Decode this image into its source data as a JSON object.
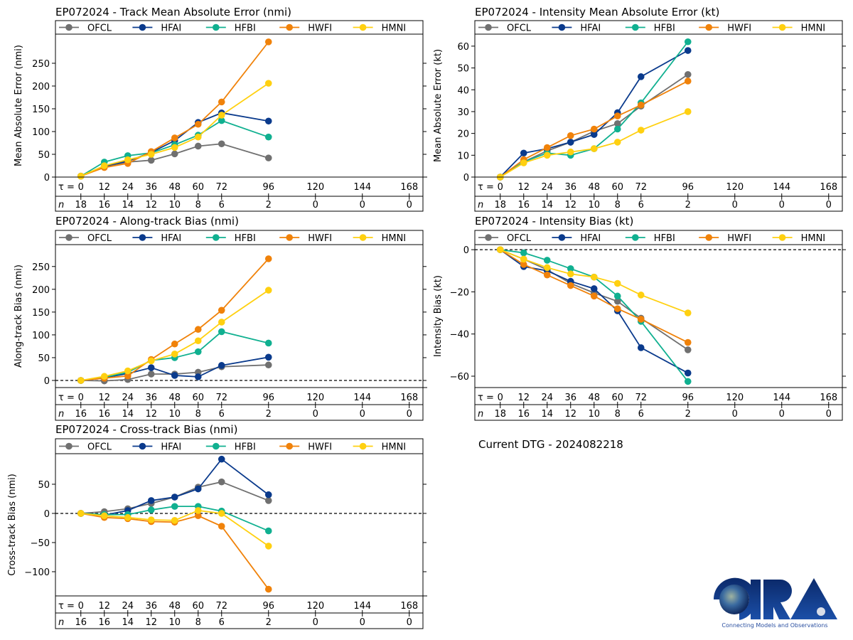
{
  "footer": {
    "dtg_label": "Current DTG - 2024082218",
    "logo_text": "CIRA",
    "logo_tagline": "Connecting Models and Observations"
  },
  "series_styles": [
    {
      "name": "OFCL",
      "color": "#707070"
    },
    {
      "name": "HFAI",
      "color": "#0a3a8c"
    },
    {
      "name": "HFBI",
      "color": "#10b090"
    },
    {
      "name": "HWFI",
      "color": "#f0820a"
    },
    {
      "name": "HMNI",
      "color": "#ffd010"
    }
  ],
  "chart_data": [
    {
      "id": "track-mae",
      "type": "line",
      "title": "EP072024 - Track Mean Absolute Error (nmi)",
      "ylabel": "Mean Absolute Error (nmi)",
      "xlabel": "τ",
      "x_ticks": [
        0,
        12,
        24,
        36,
        48,
        60,
        72,
        96,
        120,
        144,
        168
      ],
      "n_counts": [
        18,
        16,
        14,
        12,
        10,
        8,
        6,
        2,
        0,
        0,
        0
      ],
      "y_ticks": [
        0,
        50,
        100,
        150,
        200,
        250
      ],
      "ylim": [
        0,
        314
      ],
      "xlim": [
        -13,
        175
      ],
      "zero_line": false,
      "legend": "top",
      "x": [
        0,
        12,
        24,
        36,
        48,
        60,
        72,
        96
      ],
      "series": [
        {
          "name": "OFCL",
          "values": [
            2,
            23,
            33,
            37,
            51,
            68,
            73,
            42
          ]
        },
        {
          "name": "HFAI",
          "values": [
            2,
            24,
            35,
            54,
            80,
            120,
            141,
            123
          ]
        },
        {
          "name": "HFBI",
          "values": [
            2,
            33,
            47,
            53,
            71,
            92,
            124,
            88
          ]
        },
        {
          "name": "HWFI",
          "values": [
            2,
            21,
            30,
            56,
            86,
            116,
            165,
            297
          ]
        },
        {
          "name": "HMNI",
          "values": [
            2,
            25,
            38,
            50,
            65,
            88,
            136,
            206
          ]
        }
      ]
    },
    {
      "id": "intensity-mae",
      "type": "line",
      "title": "EP072024 - Intensity Mean Absolute Error (kt)",
      "ylabel": "Mean Absolute Error (kt)",
      "xlabel": "τ",
      "x_ticks": [
        0,
        12,
        24,
        36,
        48,
        60,
        72,
        96,
        120,
        144,
        168
      ],
      "n_counts": [
        18,
        16,
        14,
        12,
        10,
        8,
        6,
        2,
        0,
        0,
        0
      ],
      "y_ticks": [
        0,
        10,
        20,
        30,
        40,
        50,
        60
      ],
      "ylim": [
        0,
        65.5
      ],
      "xlim": [
        -13,
        175
      ],
      "zero_line": false,
      "legend": "top",
      "x": [
        0,
        12,
        24,
        36,
        48,
        60,
        72,
        96
      ],
      "series": [
        {
          "name": "OFCL",
          "values": [
            0,
            7,
            12,
            16,
            21,
            24.5,
            32.5,
            47
          ]
        },
        {
          "name": "HFAI",
          "values": [
            0,
            11,
            13,
            16,
            19.5,
            29.5,
            46,
            58
          ]
        },
        {
          "name": "HFBI",
          "values": [
            0,
            7,
            11,
            10,
            13,
            22,
            34,
            62
          ]
        },
        {
          "name": "HWFI",
          "values": [
            0,
            8,
            13.5,
            19,
            22,
            28,
            33,
            44
          ]
        },
        {
          "name": "HMNI",
          "values": [
            0,
            6.5,
            10,
            11.5,
            13,
            16,
            21.5,
            30
          ]
        }
      ]
    },
    {
      "id": "along-track-bias",
      "type": "line",
      "title": "EP072024 - Along-track Bias (nmi)",
      "ylabel": "Along-track Bias (nmi)",
      "xlabel": "τ",
      "x_ticks": [
        0,
        12,
        24,
        36,
        48,
        60,
        72,
        96,
        120,
        144,
        168
      ],
      "n_counts": [
        16,
        16,
        14,
        12,
        10,
        8,
        6,
        2,
        0,
        0,
        0
      ],
      "y_ticks": [
        0,
        50,
        100,
        150,
        200,
        250
      ],
      "ylim": [
        -15.6,
        298
      ],
      "xlim": [
        -13,
        175
      ],
      "zero_line": true,
      "legend": "top",
      "x": [
        0,
        12,
        24,
        36,
        48,
        60,
        72,
        96
      ],
      "series": [
        {
          "name": "OFCL",
          "values": [
            0,
            -1,
            2,
            14,
            14,
            18,
            30,
            34
          ]
        },
        {
          "name": "HFAI",
          "values": [
            0,
            6,
            15,
            28,
            11,
            8,
            33,
            51
          ]
        },
        {
          "name": "HFBI",
          "values": [
            0,
            7,
            18,
            44,
            50,
            63,
            107,
            82
          ]
        },
        {
          "name": "HWFI",
          "values": [
            0,
            5,
            10,
            46,
            80,
            112,
            154,
            267
          ]
        },
        {
          "name": "HMNI",
          "values": [
            0,
            9,
            21,
            43,
            58,
            87,
            128,
            198
          ]
        }
      ]
    },
    {
      "id": "intensity-bias",
      "type": "line",
      "title": "EP072024 - Intensity Bias (kt)",
      "ylabel": "Intensity Bias (kt)",
      "xlabel": "τ",
      "x_ticks": [
        0,
        12,
        24,
        36,
        48,
        60,
        72,
        96,
        120,
        144,
        168
      ],
      "n_counts": [
        18,
        16,
        14,
        12,
        10,
        8,
        6,
        2,
        0,
        0,
        0
      ],
      "y_ticks": [
        0,
        -20,
        -40,
        -60
      ],
      "ylim": [
        -65.4,
        2.4
      ],
      "xlim": [
        -13,
        175
      ],
      "zero_line": true,
      "legend": "top",
      "x": [
        0,
        12,
        24,
        36,
        48,
        60,
        72,
        96
      ],
      "series": [
        {
          "name": "OFCL",
          "values": [
            0,
            -4.5,
            -9.5,
            -16,
            -20.5,
            -24.5,
            -32.5,
            -47.5
          ]
        },
        {
          "name": "HFAI",
          "values": [
            0,
            -8,
            -10,
            -15,
            -18.5,
            -29,
            -46.5,
            -58.5
          ]
        },
        {
          "name": "HFBI",
          "values": [
            0,
            -1.5,
            -5,
            -9,
            -13,
            -22,
            -34,
            -62.5
          ]
        },
        {
          "name": "HWFI",
          "values": [
            0,
            -7,
            -12,
            -17,
            -22,
            -28,
            -33,
            -44
          ]
        },
        {
          "name": "HMNI",
          "values": [
            0,
            -4.5,
            -8.5,
            -11.5,
            -13,
            -16,
            -21.5,
            -30
          ]
        }
      ]
    },
    {
      "id": "cross-track-bias",
      "type": "line",
      "title": "EP072024 - Cross-track Bias (nmi)",
      "ylabel": "Cross-track Bias (nmi)",
      "xlabel": "τ",
      "x_ticks": [
        0,
        12,
        24,
        36,
        48,
        60,
        72,
        96,
        120,
        144,
        168
      ],
      "n_counts": [
        16,
        16,
        14,
        12,
        10,
        8,
        6,
        2,
        0,
        0,
        0
      ],
      "y_ticks": [
        50,
        0,
        -50,
        -100
      ],
      "ylim": [
        -141.5,
        102.4
      ],
      "xlim": [
        -13,
        175
      ],
      "zero_line": true,
      "legend": "top",
      "x": [
        0,
        12,
        24,
        36,
        48,
        60,
        72,
        96
      ],
      "series": [
        {
          "name": "OFCL",
          "values": [
            0,
            3,
            8,
            17,
            28,
            45,
            54,
            22
          ]
        },
        {
          "name": "HFAI",
          "values": [
            0,
            -3,
            5,
            22,
            28,
            42,
            93,
            32
          ]
        },
        {
          "name": "HFBI",
          "values": [
            0,
            -2,
            -2,
            6,
            12,
            12,
            4,
            -30
          ]
        },
        {
          "name": "HWFI",
          "values": [
            0,
            -7,
            -9,
            -14,
            -15,
            -4,
            -22,
            -130
          ]
        },
        {
          "name": "HMNI",
          "values": [
            0,
            -4,
            -7,
            -11,
            -12,
            5,
            0,
            -56
          ]
        }
      ]
    }
  ]
}
